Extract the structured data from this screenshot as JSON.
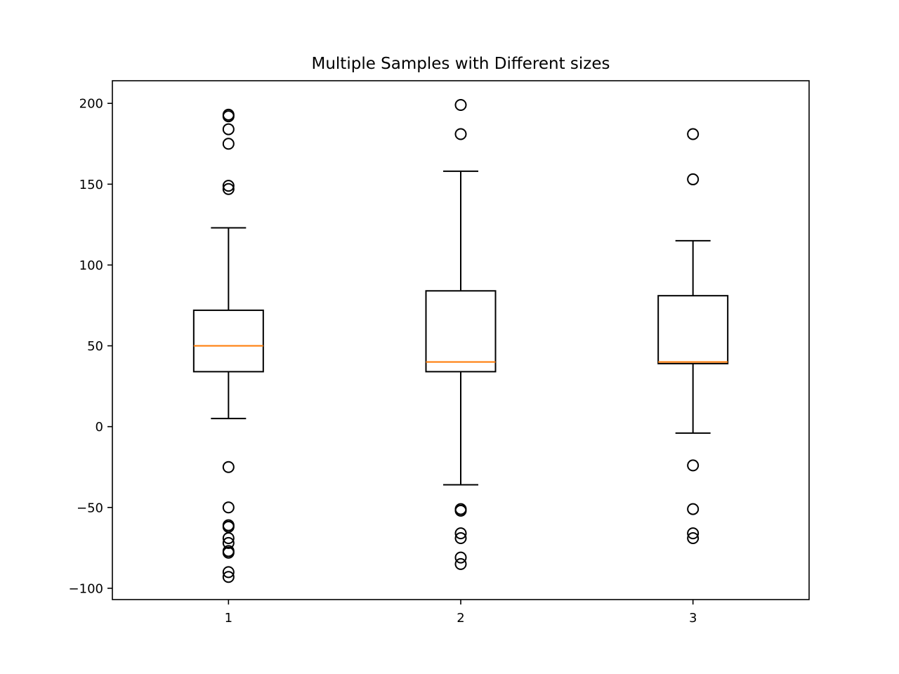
{
  "chart_data": {
    "type": "boxplot",
    "title": "Multiple Samples with Different sizes",
    "xlabel": "",
    "ylabel": "",
    "categories": [
      "1",
      "2",
      "3"
    ],
    "ylim": [
      -107,
      214
    ],
    "yticks": [
      -100,
      -50,
      0,
      50,
      100,
      150,
      200
    ],
    "ytick_labels": [
      "−100",
      "−50",
      "0",
      "50",
      "100",
      "150",
      "200"
    ],
    "grid": false,
    "colors": {
      "box": "#000000",
      "median": "#ff7f0e",
      "flier": "#000000",
      "background": "#ffffff"
    },
    "boxes": [
      {
        "label": "1",
        "whisker_low": 5,
        "q1": 34,
        "median": 50,
        "q3": 72,
        "whisker_high": 123,
        "fliers": [
          193,
          192,
          184,
          175,
          149,
          147,
          -25,
          -50,
          -61,
          -62,
          -69,
          -72,
          -77,
          -78,
          -90,
          -93
        ]
      },
      {
        "label": "2",
        "whisker_low": -36,
        "q1": 34,
        "median": 40,
        "q3": 84,
        "whisker_high": 158,
        "fliers": [
          199,
          181,
          -51,
          -52,
          -66,
          -69,
          -81,
          -85
        ]
      },
      {
        "label": "3",
        "whisker_low": -4,
        "q1": 39,
        "median": 40,
        "q3": 81,
        "whisker_high": 115,
        "fliers": [
          181,
          153,
          -24,
          -51,
          -66,
          -69
        ]
      }
    ]
  }
}
